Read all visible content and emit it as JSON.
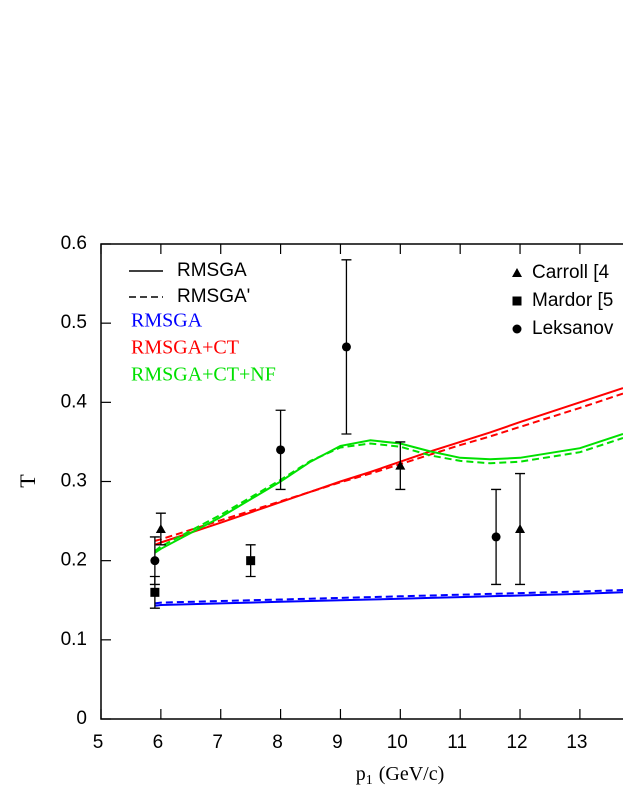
{
  "chart_data": {
    "type": "line",
    "y_label": "T",
    "x_label": {
      "main": "p",
      "sub": "1",
      "unit": "(GeV/c)"
    },
    "xlim": [
      5,
      13.72
    ],
    "ylim": [
      0,
      0.6
    ],
    "xticks": [
      5,
      6,
      7,
      8,
      9,
      10,
      11,
      12,
      13
    ],
    "yticks": [
      {
        "value": 0,
        "label": "0"
      },
      0.1,
      0.2,
      0.3,
      0.4,
      0.5,
      0.6
    ],
    "line_styles": [
      {
        "name": "RMSGA",
        "dashed": false
      },
      {
        "name": "RMSGA'",
        "dashed": true
      }
    ],
    "curve_x": [
      5.9,
      6,
      7,
      8,
      8.5,
      9,
      9.5,
      10,
      10.5,
      11,
      11.5,
      12,
      13,
      13.72
    ],
    "models": [
      {
        "name": "RMSGA",
        "color": "#0000ff",
        "values": [
          0.143,
          0.144,
          0.146,
          0.148,
          0.149,
          0.15,
          0.151,
          0.152,
          0.153,
          0.154,
          0.155,
          0.156,
          0.158,
          0.16
        ],
        "values_dashed": [
          0.146,
          0.147,
          0.149,
          0.151,
          0.152,
          0.153,
          0.154,
          0.155,
          0.156,
          0.157,
          0.158,
          0.159,
          0.161,
          0.163
        ]
      },
      {
        "name": "RMSGA+CT",
        "color": "#ff0000",
        "values": [
          0.22,
          0.223,
          0.248,
          0.274,
          0.287,
          0.3,
          0.312,
          0.325,
          0.338,
          0.35,
          0.362,
          0.375,
          0.4,
          0.418
        ],
        "values_dashed": [
          0.225,
          0.227,
          0.251,
          0.275,
          0.287,
          0.299,
          0.31,
          0.322,
          0.334,
          0.346,
          0.357,
          0.369,
          0.393,
          0.411
        ]
      },
      {
        "name": "RMSGA+CT+NF",
        "color": "#00e000",
        "values": [
          0.21,
          0.215,
          0.255,
          0.3,
          0.325,
          0.345,
          0.352,
          0.348,
          0.338,
          0.33,
          0.328,
          0.33,
          0.342,
          0.36
        ],
        "values_dashed": [
          0.212,
          0.218,
          0.258,
          0.302,
          0.326,
          0.343,
          0.348,
          0.344,
          0.333,
          0.326,
          0.323,
          0.325,
          0.337,
          0.355
        ]
      }
    ],
    "experiments": [
      {
        "name": "Carroll [4",
        "marker": "triangle",
        "x": [
          6.0,
          10.0,
          12.0
        ],
        "values": [
          0.24,
          0.32,
          0.24
        ],
        "low": [
          0.22,
          0.29,
          0.17
        ],
        "high": [
          0.26,
          0.35,
          0.31
        ]
      },
      {
        "name": "Mardor [5",
        "marker": "square",
        "x": [
          5.9,
          7.5
        ],
        "values": [
          0.16,
          0.2
        ],
        "low": [
          0.14,
          0.18
        ],
        "high": [
          0.18,
          0.22
        ]
      },
      {
        "name": "Leksanov",
        "marker": "circle",
        "x": [
          5.9,
          8.0,
          9.1,
          11.6
        ],
        "values": [
          0.2,
          0.34,
          0.47,
          0.23
        ],
        "low": [
          0.17,
          0.29,
          0.36,
          0.17
        ],
        "high": [
          0.23,
          0.39,
          0.58,
          0.29
        ]
      }
    ]
  }
}
